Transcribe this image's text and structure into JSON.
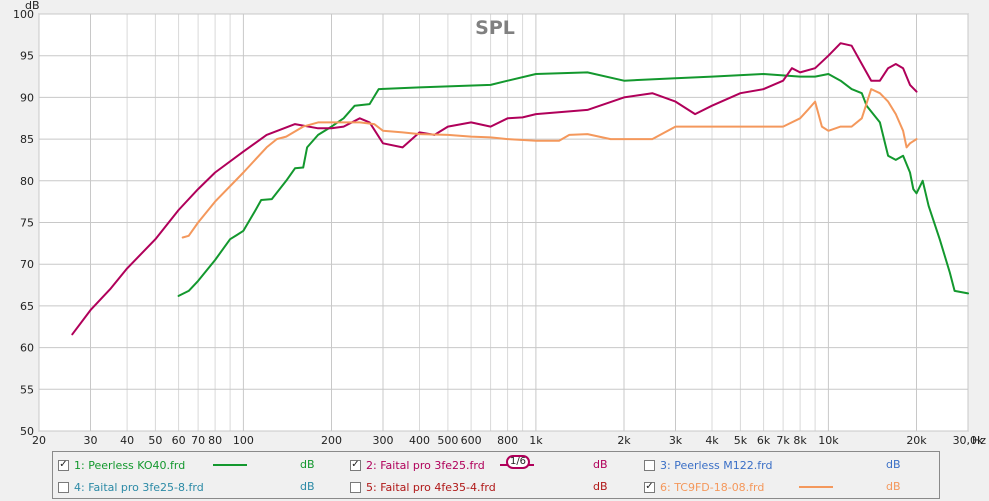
{
  "chart_data": {
    "type": "line",
    "title": "SPL",
    "yunit": "dB",
    "xunit": "Hz",
    "xscale": "log",
    "xlim": [
      20,
      30000
    ],
    "ylim": [
      50,
      100
    ],
    "grid": true,
    "x_tick_labels": [
      {
        "v": 20,
        "t": "20"
      },
      {
        "v": 30,
        "t": "30"
      },
      {
        "v": 40,
        "t": "40"
      },
      {
        "v": 50,
        "t": "50"
      },
      {
        "v": 60,
        "t": "60"
      },
      {
        "v": 70,
        "t": "70"
      },
      {
        "v": 80,
        "t": "80"
      },
      {
        "v": 100,
        "t": "100"
      },
      {
        "v": 200,
        "t": "200"
      },
      {
        "v": 300,
        "t": "300"
      },
      {
        "v": 400,
        "t": "400"
      },
      {
        "v": 500,
        "t": "500"
      },
      {
        "v": 600,
        "t": "600"
      },
      {
        "v": 800,
        "t": "800"
      },
      {
        "v": 1000,
        "t": "1k"
      },
      {
        "v": 2000,
        "t": "2k"
      },
      {
        "v": 3000,
        "t": "3k"
      },
      {
        "v": 4000,
        "t": "4k"
      },
      {
        "v": 5000,
        "t": "5k"
      },
      {
        "v": 6000,
        "t": "6k"
      },
      {
        "v": 7000,
        "t": "7k"
      },
      {
        "v": 8000,
        "t": "8k"
      },
      {
        "v": 10000,
        "t": "10k"
      },
      {
        "v": 20000,
        "t": "20k"
      },
      {
        "v": 30000,
        "t": "30,0k"
      }
    ],
    "y_ticks": [
      50,
      55,
      60,
      65,
      70,
      75,
      80,
      85,
      90,
      95,
      100
    ],
    "series": [
      {
        "name": "1: Peerless KO40.frd",
        "color": "#13982e",
        "points": [
          [
            60,
            66.2
          ],
          [
            65,
            66.8
          ],
          [
            70,
            68
          ],
          [
            80,
            70.5
          ],
          [
            90,
            73
          ],
          [
            95,
            73.5
          ],
          [
            100,
            74
          ],
          [
            110,
            76.5
          ],
          [
            115,
            77.7
          ],
          [
            125,
            77.8
          ],
          [
            140,
            80
          ],
          [
            150,
            81.5
          ],
          [
            160,
            81.6
          ],
          [
            165,
            84
          ],
          [
            180,
            85.5
          ],
          [
            200,
            86.5
          ],
          [
            220,
            87.5
          ],
          [
            240,
            89
          ],
          [
            270,
            89.2
          ],
          [
            290,
            91
          ],
          [
            400,
            91.2
          ],
          [
            700,
            91.5
          ],
          [
            800,
            92
          ],
          [
            1000,
            92.8
          ],
          [
            1500,
            93
          ],
          [
            2000,
            92
          ],
          [
            3000,
            92.3
          ],
          [
            4000,
            92.5
          ],
          [
            6000,
            92.8
          ],
          [
            8000,
            92.5
          ],
          [
            9000,
            92.5
          ],
          [
            10000,
            92.8
          ],
          [
            11000,
            92
          ],
          [
            12000,
            91
          ],
          [
            13000,
            90.5
          ],
          [
            13500,
            89
          ],
          [
            15000,
            87
          ],
          [
            16000,
            83
          ],
          [
            17000,
            82.5
          ],
          [
            18000,
            83
          ],
          [
            19000,
            81
          ],
          [
            19500,
            79
          ],
          [
            20000,
            78.5
          ],
          [
            21000,
            80
          ],
          [
            22000,
            77
          ],
          [
            24000,
            73
          ],
          [
            26000,
            69
          ],
          [
            27000,
            66.8
          ],
          [
            30000,
            66.5
          ]
        ]
      },
      {
        "name": "2: Faital pro 3fe25.frd",
        "color": "#b0005a",
        "points": [
          [
            26,
            61.6
          ],
          [
            30,
            64.5
          ],
          [
            35,
            67
          ],
          [
            40,
            69.5
          ],
          [
            50,
            73
          ],
          [
            60,
            76.5
          ],
          [
            70,
            79
          ],
          [
            80,
            81
          ],
          [
            100,
            83.5
          ],
          [
            120,
            85.5
          ],
          [
            150,
            86.8
          ],
          [
            180,
            86.3
          ],
          [
            200,
            86.3
          ],
          [
            220,
            86.5
          ],
          [
            250,
            87.5
          ],
          [
            270,
            87
          ],
          [
            300,
            84.5
          ],
          [
            350,
            84
          ],
          [
            400,
            85.8
          ],
          [
            450,
            85.5
          ],
          [
            500,
            86.5
          ],
          [
            600,
            87
          ],
          [
            700,
            86.5
          ],
          [
            800,
            87.5
          ],
          [
            900,
            87.6
          ],
          [
            1000,
            88
          ],
          [
            1500,
            88.5
          ],
          [
            2000,
            90
          ],
          [
            2500,
            90.5
          ],
          [
            3000,
            89.5
          ],
          [
            3500,
            88
          ],
          [
            4000,
            89
          ],
          [
            5000,
            90.5
          ],
          [
            6000,
            91
          ],
          [
            7000,
            92
          ],
          [
            7500,
            93.5
          ],
          [
            8000,
            93
          ],
          [
            9000,
            93.5
          ],
          [
            10000,
            95
          ],
          [
            11000,
            96.5
          ],
          [
            12000,
            96.2
          ],
          [
            13000,
            94
          ],
          [
            14000,
            92
          ],
          [
            15000,
            92
          ],
          [
            16000,
            93.5
          ],
          [
            17000,
            94
          ],
          [
            18000,
            93.5
          ],
          [
            19000,
            91.5
          ],
          [
            20000,
            90.7
          ]
        ]
      },
      {
        "name": "6: TC9FD-18-08.frd",
        "color": "#f4985c",
        "points": [
          [
            62,
            73.2
          ],
          [
            65,
            73.4
          ],
          [
            70,
            75
          ],
          [
            80,
            77.5
          ],
          [
            100,
            81
          ],
          [
            120,
            84
          ],
          [
            130,
            85
          ],
          [
            140,
            85.3
          ],
          [
            160,
            86.5
          ],
          [
            180,
            87
          ],
          [
            200,
            87
          ],
          [
            250,
            87
          ],
          [
            280,
            86.8
          ],
          [
            300,
            86
          ],
          [
            350,
            85.8
          ],
          [
            400,
            85.6
          ],
          [
            500,
            85.5
          ],
          [
            600,
            85.3
          ],
          [
            700,
            85.2
          ],
          [
            800,
            85
          ],
          [
            1000,
            84.8
          ],
          [
            1200,
            84.8
          ],
          [
            1300,
            85.5
          ],
          [
            1500,
            85.6
          ],
          [
            1800,
            85
          ],
          [
            2000,
            85
          ],
          [
            2500,
            85
          ],
          [
            3000,
            86.5
          ],
          [
            4000,
            86.5
          ],
          [
            5000,
            86.5
          ],
          [
            6000,
            86.5
          ],
          [
            7000,
            86.5
          ],
          [
            8000,
            87.5
          ],
          [
            8500,
            88.5
          ],
          [
            9000,
            89.5
          ],
          [
            9500,
            86.5
          ],
          [
            10000,
            86
          ],
          [
            11000,
            86.5
          ],
          [
            12000,
            86.5
          ],
          [
            13000,
            87.5
          ],
          [
            14000,
            91
          ],
          [
            15000,
            90.5
          ],
          [
            16000,
            89.5
          ],
          [
            17000,
            88
          ],
          [
            18000,
            86
          ],
          [
            18500,
            84
          ],
          [
            19000,
            84.5
          ],
          [
            20000,
            85
          ]
        ]
      }
    ]
  },
  "legend": {
    "items": [
      {
        "label": "1: Peerless KO40.frd",
        "checked": true,
        "color": "#13982e",
        "unit": "dB",
        "marker": "line"
      },
      {
        "label": "2: Faital pro 3fe25.frd",
        "checked": true,
        "color": "#b0005a",
        "unit": "dB",
        "marker": "smoothing",
        "smoothing": "1/6"
      },
      {
        "label": "3: Peerless M122.frd",
        "checked": false,
        "color": "#3a6fc6",
        "unit": "dB",
        "marker": "none"
      },
      {
        "label": "4: Faital pro 3fe25-8.frd",
        "checked": false,
        "color": "#2c8aa6",
        "unit": "dB",
        "marker": "none"
      },
      {
        "label": "5: Faital pro 4fe35-4.frd",
        "checked": false,
        "color": "#b01818",
        "unit": "dB",
        "marker": "none"
      },
      {
        "label": "6: TC9FD-18-08.frd",
        "checked": true,
        "color": "#f4985c",
        "unit": "dB",
        "marker": "line"
      }
    ],
    "check_glyph": "✓"
  }
}
